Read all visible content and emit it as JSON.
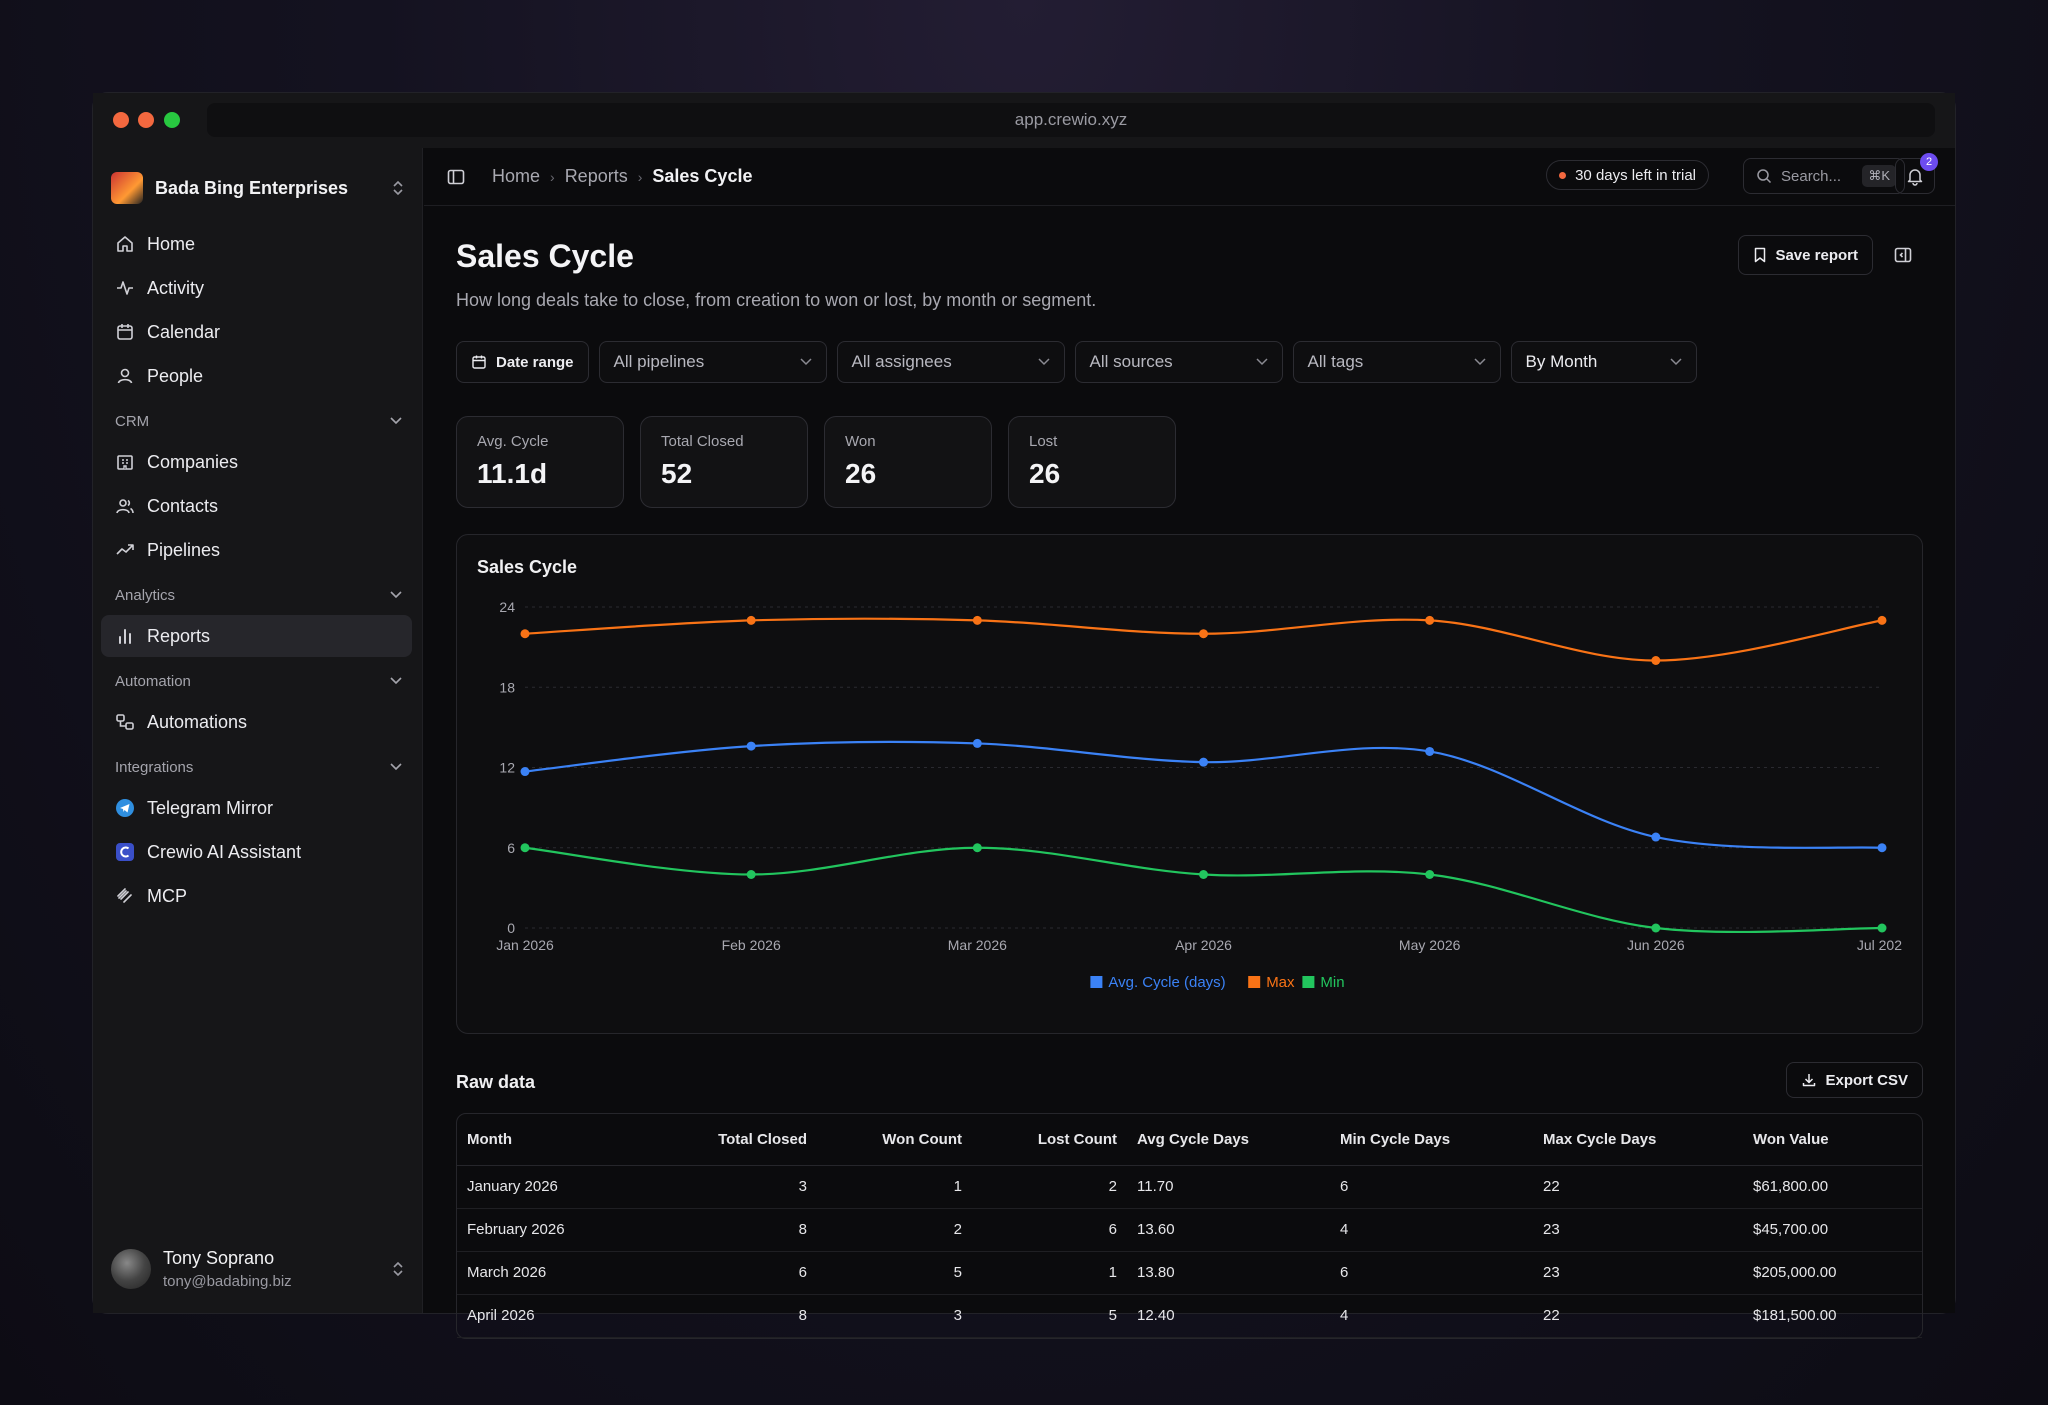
{
  "browser": {
    "url": "app.crewio.xyz"
  },
  "org": {
    "name": "Bada Bing Enterprises"
  },
  "nav": {
    "top": [
      {
        "label": "Home",
        "icon": "home-icon"
      },
      {
        "label": "Activity",
        "icon": "activity-icon"
      },
      {
        "label": "Calendar",
        "icon": "calendar-icon"
      },
      {
        "label": "People",
        "icon": "person-icon"
      }
    ],
    "crm_label": "CRM",
    "crm": [
      {
        "label": "Companies",
        "icon": "building-icon"
      },
      {
        "label": "Contacts",
        "icon": "contacts-icon"
      },
      {
        "label": "Pipelines",
        "icon": "trend-icon"
      }
    ],
    "analytics_label": "Analytics",
    "analytics": [
      {
        "label": "Reports",
        "icon": "bar-chart-icon"
      }
    ],
    "automation_label": "Automation",
    "automation": [
      {
        "label": "Automations",
        "icon": "workflow-icon"
      }
    ],
    "integrations_label": "Integrations",
    "integrations": [
      {
        "label": "Telegram Mirror",
        "icon": "telegram-icon"
      },
      {
        "label": "Crewio AI Assistant",
        "icon": "crewio-icon"
      },
      {
        "label": "MCP",
        "icon": "mcp-icon"
      }
    ]
  },
  "user": {
    "name": "Tony Soprano",
    "email": "tony@badabing.biz"
  },
  "topbar": {
    "breadcrumb": [
      "Home",
      "Reports",
      "Sales Cycle"
    ],
    "trial": "30 days left in trial",
    "search_placeholder": "Search...",
    "search_shortcut": "⌘K",
    "notifications": "2"
  },
  "page": {
    "title": "Sales Cycle",
    "subtitle": "How long deals take to close, from creation to won or lost, by month or segment.",
    "save_label": "Save report"
  },
  "filters": {
    "date_range": "Date range",
    "pipelines": "All pipelines",
    "assignees": "All assignees",
    "sources": "All sources",
    "tags": "All tags",
    "group_by": "By Month"
  },
  "stats": [
    {
      "label": "Avg. Cycle",
      "value": "11.1d"
    },
    {
      "label": "Total Closed",
      "value": "52"
    },
    {
      "label": "Won",
      "value": "26"
    },
    {
      "label": "Lost",
      "value": "26"
    }
  ],
  "chart_data": {
    "type": "line",
    "title": "Sales Cycle",
    "categories": [
      "Jan 2026",
      "Feb 2026",
      "Mar 2026",
      "Apr 2026",
      "May 2026",
      "Jun 2026",
      "Jul 202"
    ],
    "ylim": [
      0,
      24
    ],
    "yticks": [
      0,
      6,
      12,
      18,
      24
    ],
    "grid": true,
    "legend": "bottom-center",
    "series": [
      {
        "name": "Avg. Cycle (days)",
        "color": "#3b82f6",
        "values": [
          11.7,
          13.6,
          13.8,
          12.4,
          13.2,
          6.8,
          6.0
        ]
      },
      {
        "name": "Max",
        "color": "#f97316",
        "values": [
          22,
          23,
          23,
          22,
          23,
          20,
          23
        ]
      },
      {
        "name": "Min",
        "color": "#22c55e",
        "values": [
          6,
          4,
          6,
          4,
          4,
          0,
          0
        ]
      }
    ]
  },
  "raw": {
    "title": "Raw data",
    "export_label": "Export CSV",
    "columns": [
      "Month",
      "Total Closed",
      "Won Count",
      "Lost Count",
      "Avg Cycle Days",
      "Min Cycle Days",
      "Max Cycle Days",
      "Won Value"
    ],
    "rows": [
      [
        "January 2026",
        "3",
        "1",
        "2",
        "11.70",
        "6",
        "22",
        "$61,800.00"
      ],
      [
        "February 2026",
        "8",
        "2",
        "6",
        "13.60",
        "4",
        "23",
        "$45,700.00"
      ],
      [
        "March 2026",
        "6",
        "5",
        "1",
        "13.80",
        "6",
        "23",
        "$205,000.00"
      ],
      [
        "April 2026",
        "8",
        "3",
        "5",
        "12.40",
        "4",
        "22",
        "$181,500.00"
      ]
    ]
  }
}
